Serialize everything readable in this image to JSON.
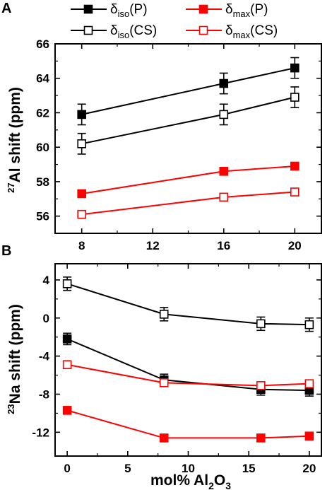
{
  "chart_data": [
    {
      "type": "line",
      "panel": "A",
      "ylabel": "²⁷Al shift (ppm)",
      "xlim": [
        6.5,
        21.5
      ],
      "ylim": [
        55,
        66
      ],
      "xticks": [
        8,
        12,
        16,
        20
      ],
      "yticks": [
        56,
        58,
        60,
        62,
        64,
        66
      ],
      "legend_position": "top",
      "series": [
        {
          "name": "δiso(P)",
          "color": "#000000",
          "marker": "filled-square",
          "x": [
            8,
            16,
            20
          ],
          "y": [
            61.9,
            63.7,
            64.6
          ],
          "err": [
            0.6,
            0.6,
            0.6
          ]
        },
        {
          "name": "δiso(CS)",
          "color": "#000000",
          "marker": "open-square",
          "x": [
            8,
            16,
            20
          ],
          "y": [
            60.2,
            61.9,
            62.9
          ],
          "err": [
            0.6,
            0.6,
            0.6
          ]
        },
        {
          "name": "δmax(P)",
          "color": "#ff0000",
          "marker": "filled-square",
          "x": [
            8,
            16,
            20
          ],
          "y": [
            57.3,
            58.6,
            58.9
          ]
        },
        {
          "name": "δmax(CS)",
          "color": "#ff0000",
          "marker": "open-square",
          "x": [
            8,
            16,
            20
          ],
          "y": [
            56.1,
            57.1,
            57.4
          ]
        }
      ]
    },
    {
      "type": "line",
      "panel": "B",
      "xlabel": "mol% Al₂O₃",
      "ylabel": "²³Na shift (ppm)",
      "xlim": [
        -1,
        21
      ],
      "ylim": [
        -14.5,
        5.7
      ],
      "xticks": [
        0,
        5,
        10,
        15,
        20
      ],
      "yticks": [
        4,
        0,
        -4,
        -8,
        -12
      ],
      "series": [
        {
          "name": "δiso(P)",
          "color": "#000000",
          "marker": "filled-square",
          "x": [
            0,
            8,
            16,
            20
          ],
          "y": [
            -2.2,
            -6.5,
            -7.5,
            -7.6
          ],
          "err": [
            0.6,
            0.6,
            0.6,
            0.6
          ]
        },
        {
          "name": "δiso(CS)",
          "color": "#000000",
          "marker": "open-square",
          "x": [
            0,
            8,
            16,
            20
          ],
          "y": [
            3.6,
            0.4,
            -0.6,
            -0.7
          ],
          "err": [
            0.7,
            0.7,
            0.7,
            0.7
          ]
        },
        {
          "name": "δmax(P)",
          "color": "#ff0000",
          "marker": "filled-square",
          "x": [
            0,
            8,
            16,
            20
          ],
          "y": [
            -9.7,
            -12.6,
            -12.6,
            -12.4
          ]
        },
        {
          "name": "δmax(CS)",
          "color": "#ff0000",
          "marker": "open-square",
          "x": [
            0,
            8,
            16,
            20
          ],
          "y": [
            -4.9,
            -6.8,
            -7.1,
            -6.9
          ]
        }
      ]
    }
  ],
  "legend": [
    {
      "base": "δ",
      "sub": "iso",
      "suffix": "(P)",
      "color": "#000000",
      "marker": "filled-square"
    },
    {
      "base": "δ",
      "sub": "max",
      "suffix": "(P)",
      "color": "#ff0000",
      "marker": "filled-square"
    },
    {
      "base": "δ",
      "sub": "iso",
      "suffix": "(CS)",
      "color": "#000000",
      "marker": "open-square"
    },
    {
      "base": "δ",
      "sub": "max",
      "suffix": "(CS)",
      "color": "#ff0000",
      "marker": "open-square"
    }
  ],
  "axis_text": {
    "a_ylabel": {
      "sup": "27",
      "main": "Al shift (ppm)"
    },
    "b_ylabel": {
      "sup": "23",
      "main": "Na shift (ppm)"
    },
    "b_xlabel": {
      "pre": "mol% Al",
      "sub1": "2",
      "mid": "O",
      "sub2": "3"
    }
  }
}
